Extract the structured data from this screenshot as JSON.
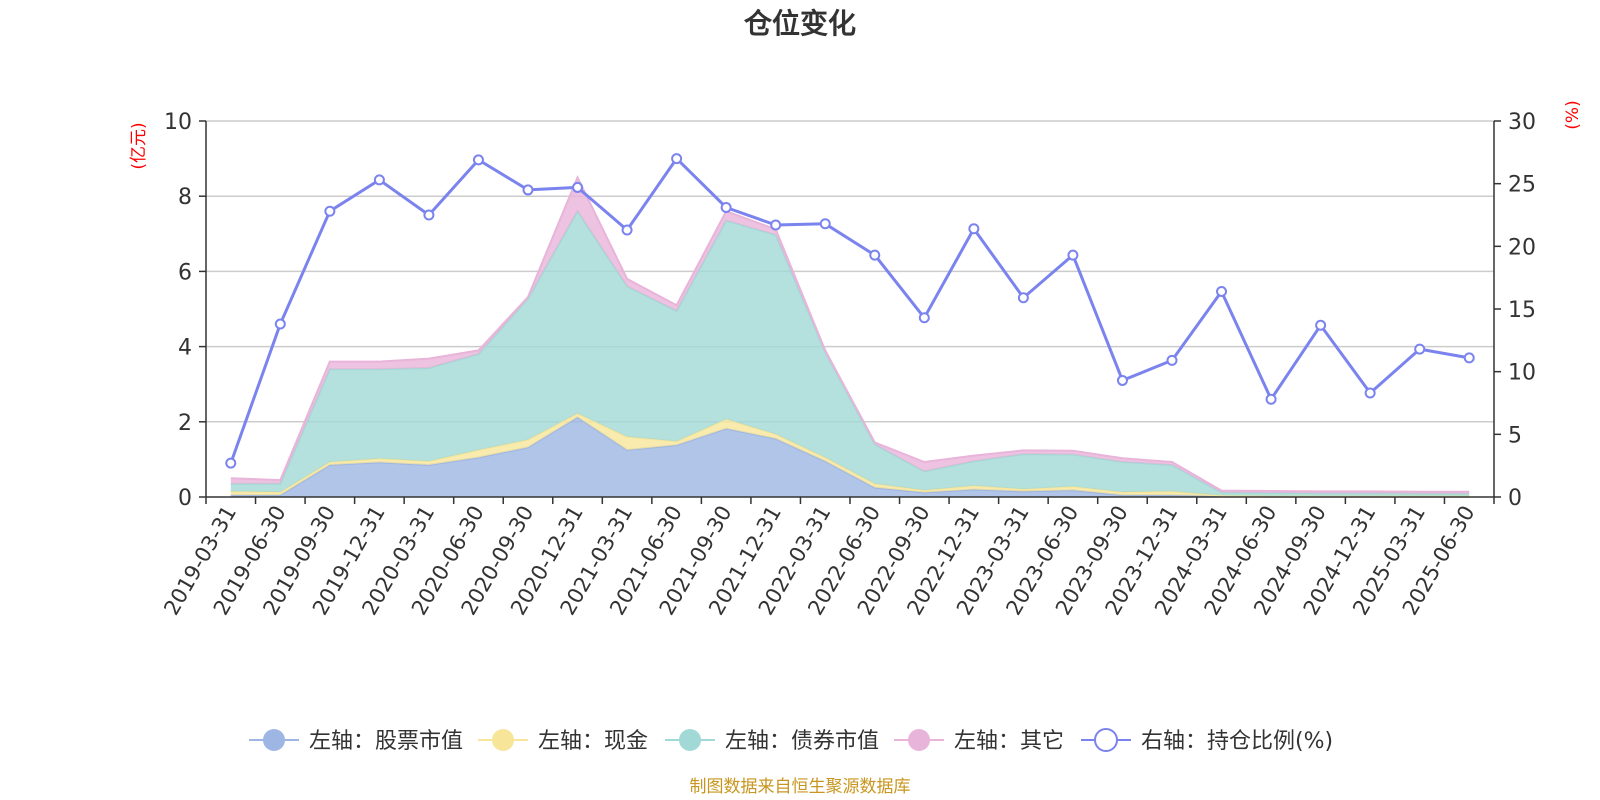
{
  "chart_data": {
    "type": "area",
    "title": "仓位变化",
    "left_unit": "(亿元)",
    "right_unit": "(%)",
    "x": [
      "2019-03-31",
      "2019-06-30",
      "2019-09-30",
      "2019-12-31",
      "2020-03-31",
      "2020-06-30",
      "2020-09-30",
      "2020-12-31",
      "2021-03-31",
      "2021-06-30",
      "2021-09-30",
      "2021-12-31",
      "2022-03-31",
      "2022-06-30",
      "2022-09-30",
      "2022-12-31",
      "2023-03-31",
      "2023-06-30",
      "2023-09-30",
      "2023-12-31",
      "2024-03-31",
      "2024-06-30",
      "2024-09-30",
      "2024-12-31",
      "2025-03-31",
      "2025-06-30"
    ],
    "ylim_left": [
      0,
      10
    ],
    "yticks_left": [
      "0",
      "2",
      "4",
      "6",
      "8",
      "10"
    ],
    "ylim_right": [
      0,
      30
    ],
    "yticks_right": [
      "0",
      "5",
      "10",
      "15",
      "20",
      "25",
      "30"
    ],
    "grid": true,
    "legend_position": "bottom",
    "stacked_series": [
      {
        "name": "左轴：股票市值",
        "axis": "left",
        "color": "#9db6e3",
        "values": [
          0.05,
          0.05,
          0.85,
          0.92,
          0.85,
          1.05,
          1.32,
          2.12,
          1.25,
          1.38,
          1.82,
          1.55,
          0.95,
          0.25,
          0.12,
          0.2,
          0.15,
          0.18,
          0.05,
          0.05,
          0.02,
          0.01,
          0.01,
          0.01,
          0.01,
          0.01
        ]
      },
      {
        "name": "左轴：现金",
        "axis": "left",
        "color": "#f7e59a",
        "values": [
          0.1,
          0.08,
          0.08,
          0.1,
          0.1,
          0.2,
          0.2,
          0.1,
          0.35,
          0.1,
          0.25,
          0.12,
          0.1,
          0.1,
          0.06,
          0.1,
          0.06,
          0.1,
          0.08,
          0.1,
          0.02,
          0.02,
          0.02,
          0.02,
          0.02,
          0.02
        ]
      },
      {
        "name": "左轴：债券市值",
        "axis": "left",
        "color": "#a1d9d6",
        "values": [
          0.2,
          0.22,
          2.47,
          2.38,
          2.48,
          2.55,
          3.75,
          5.38,
          4.0,
          3.47,
          5.28,
          5.3,
          2.8,
          1.05,
          0.5,
          0.65,
          0.93,
          0.85,
          0.8,
          0.7,
          0.08,
          0.08,
          0.07,
          0.07,
          0.06,
          0.06
        ]
      },
      {
        "name": "左轴：其它",
        "axis": "left",
        "color": "#e8b4d9",
        "values": [
          0.15,
          0.1,
          0.2,
          0.2,
          0.25,
          0.1,
          0.05,
          0.9,
          0.2,
          0.15,
          0.25,
          0.15,
          0.05,
          0.05,
          0.25,
          0.15,
          0.1,
          0.1,
          0.1,
          0.08,
          0.05,
          0.05,
          0.05,
          0.05,
          0.05,
          0.05
        ]
      }
    ],
    "line_series": {
      "name": "右轴：持仓比例(%)",
      "axis": "right",
      "color": "#7b83ef",
      "values": [
        2.7,
        13.8,
        22.8,
        25.3,
        22.5,
        26.9,
        24.5,
        24.7,
        21.3,
        27.0,
        23.1,
        21.7,
        21.8,
        19.3,
        14.3,
        21.4,
        15.9,
        19.3,
        9.3,
        10.9,
        16.4,
        7.8,
        13.7,
        8.3,
        11.8,
        11.1
      ]
    }
  },
  "legend": [
    {
      "label": "左轴：股票市值",
      "marker": "circle",
      "color": "#9db6e3"
    },
    {
      "label": "左轴：现金",
      "marker": "circle",
      "color": "#f7e59a"
    },
    {
      "label": "左轴：债券市值",
      "marker": "circle",
      "color": "#a1d9d6"
    },
    {
      "label": "左轴：其它",
      "marker": "circle",
      "color": "#e8b4d9"
    },
    {
      "label": "右轴：持仓比例(%)",
      "marker": "hollow-circle",
      "color": "#7b83ef"
    }
  ],
  "source_note": "制图数据来自恒生聚源数据库"
}
